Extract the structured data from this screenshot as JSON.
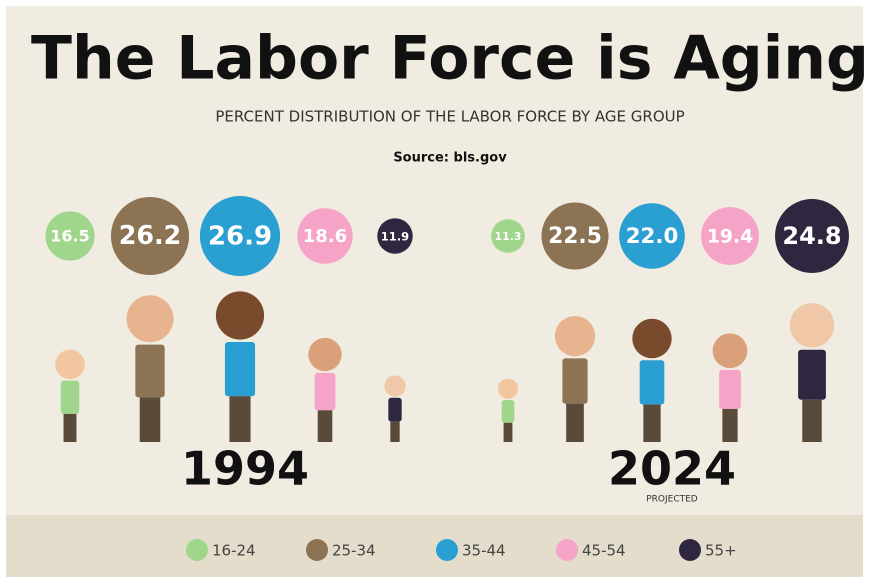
{
  "chart_data": {
    "type": "bubble",
    "title": "The Labor Force is Aging",
    "subtitle": "PERCENT DISTRIBUTION OF THE LABOR FORCE BY AGE GROUP",
    "source": "Source: bls.gov",
    "categories": [
      "16-24",
      "25-34",
      "35-44",
      "45-54",
      "55+"
    ],
    "colors": [
      "#9fd68b",
      "#8b7354",
      "#2a9fd2",
      "#f5a4c8",
      "#2f2640"
    ],
    "series": [
      {
        "name": "1994",
        "values": [
          16.5,
          26.2,
          26.9,
          18.6,
          11.9
        ],
        "value_labels": [
          "16.5",
          "26.2",
          "26.9",
          "18.6",
          "11.9"
        ]
      },
      {
        "name": "2024",
        "note": "PROJECTED",
        "values": [
          11.3,
          22.5,
          22.0,
          19.4,
          24.8
        ],
        "value_labels": [
          "11.3",
          "22.5",
          "22.0",
          "19.4",
          "24.8"
        ]
      }
    ]
  }
}
